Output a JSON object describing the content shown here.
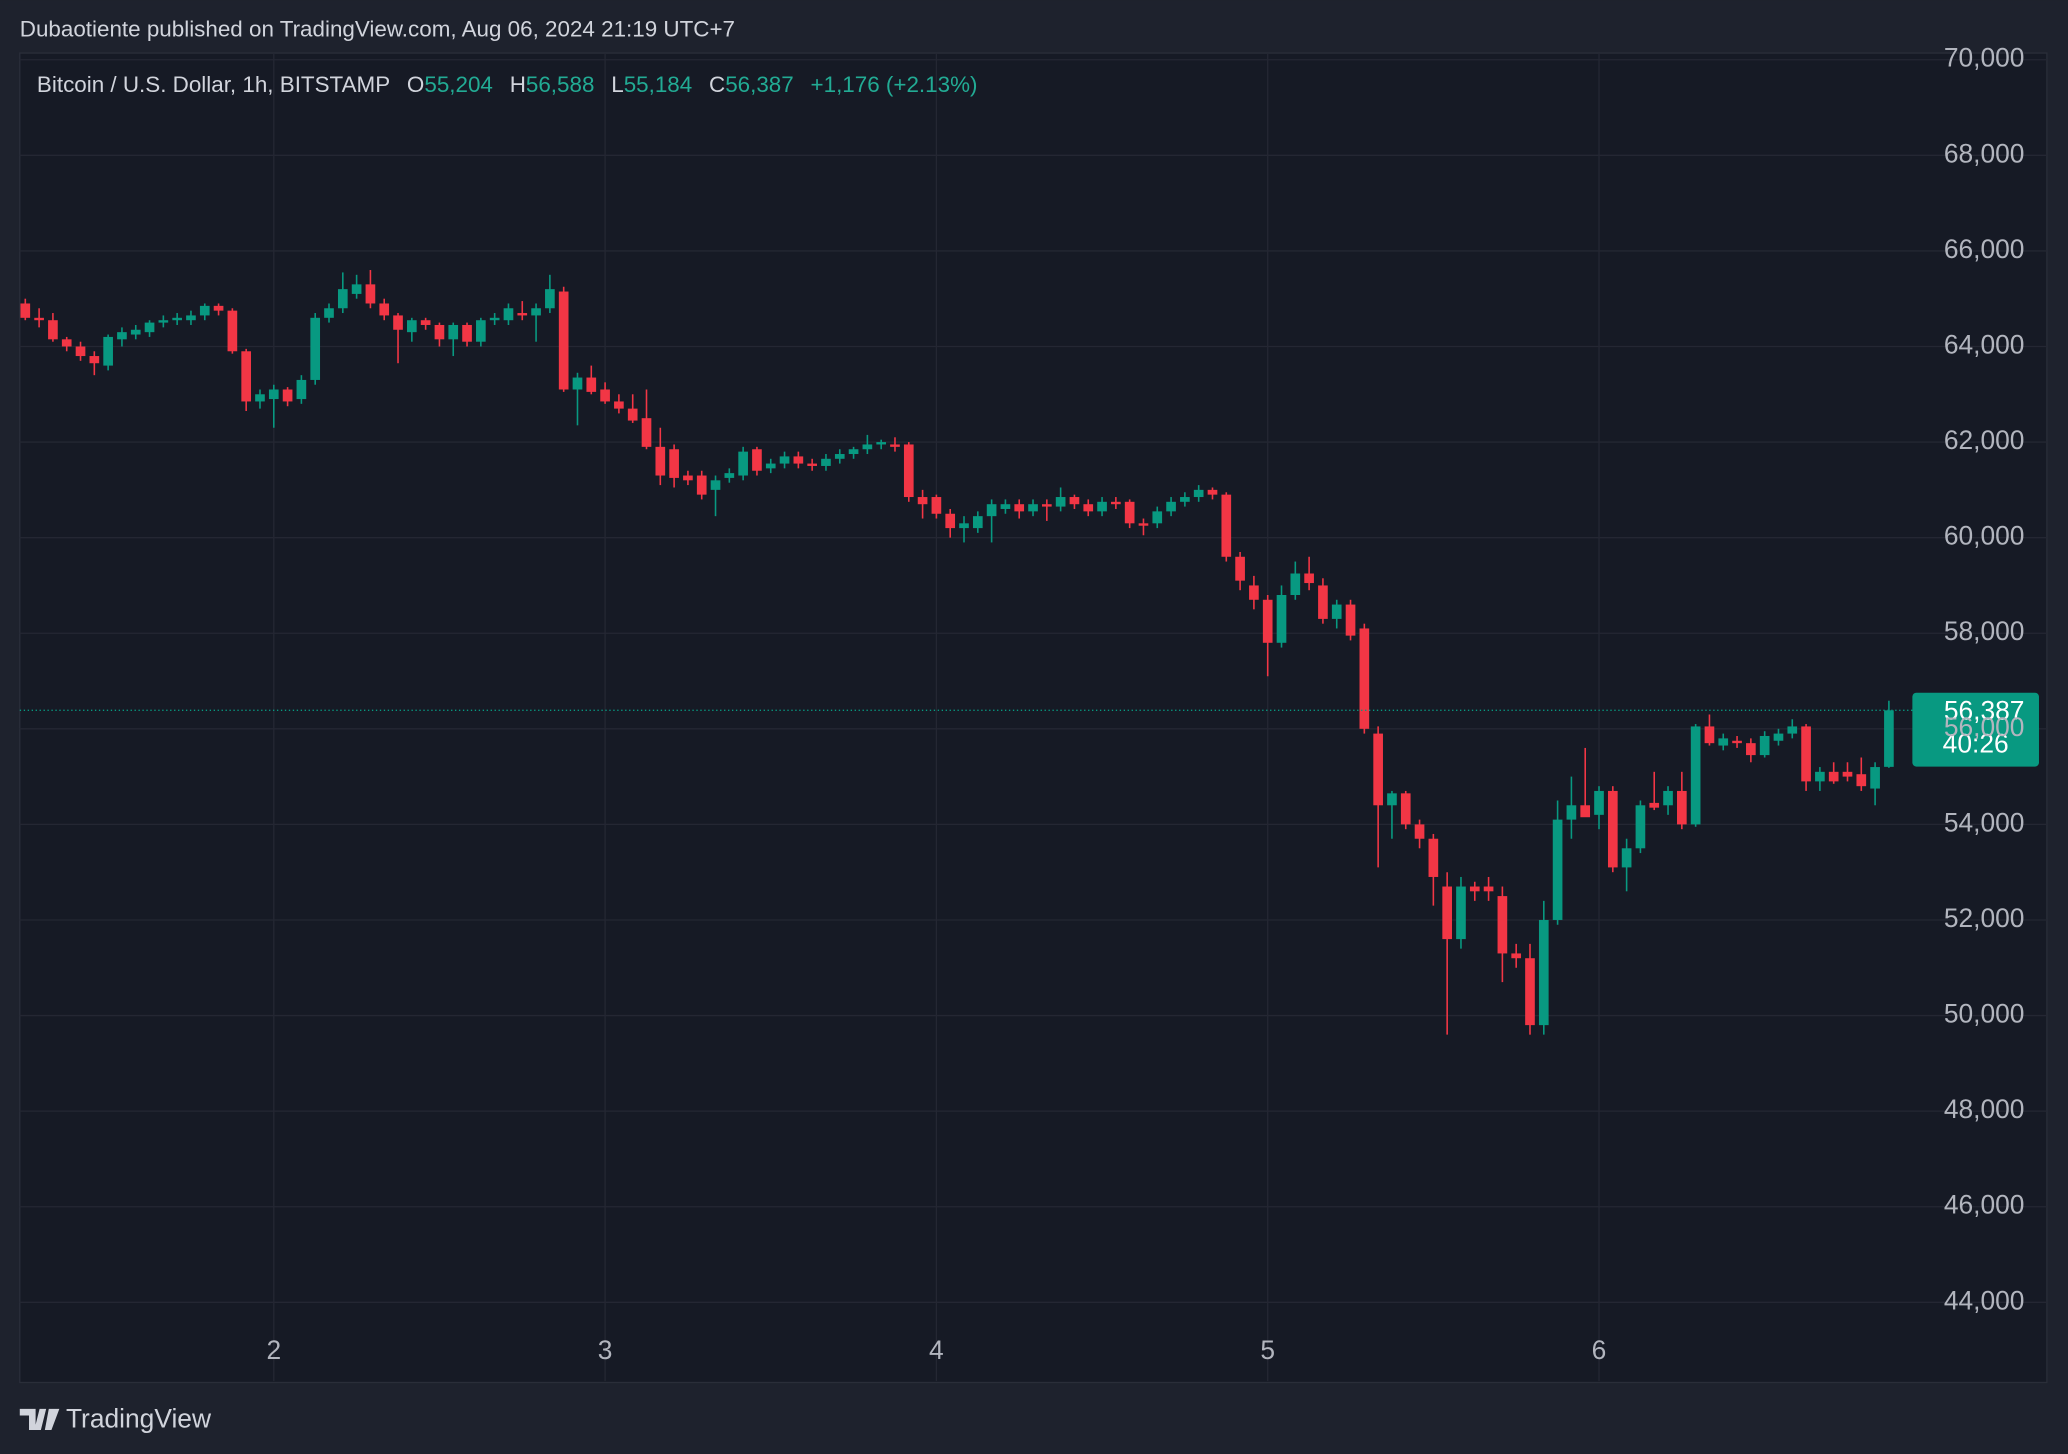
{
  "chart_data": {
    "type": "candlestick",
    "attribution": "Dubaotiente published on TradingView.com, Aug 06, 2024 21:19 UTC+7",
    "symbol": "Bitcoin / U.S. Dollar, 1h, BITSTAMP",
    "ohlc_labels": [
      {
        "key": "O",
        "value": "55,204"
      },
      {
        "key": "H",
        "value": "56,588"
      },
      {
        "key": "L",
        "value": "55,184"
      },
      {
        "key": "C",
        "value": "56,387"
      }
    ],
    "change": "+1,176 (+2.13%)",
    "price_tag": {
      "price": "56,387",
      "countdown": "40:26"
    },
    "brand": "TradingView",
    "up_color": "#089981",
    "down_color": "#f23645",
    "grid": true,
    "x": [
      6,
      7,
      8,
      9,
      10,
      11,
      12,
      13,
      14,
      15,
      16,
      17,
      18,
      19,
      20,
      21,
      22,
      23,
      24,
      25,
      26,
      27,
      28,
      29,
      30,
      31,
      32,
      33,
      34,
      35,
      36,
      37,
      38,
      39,
      40,
      41,
      42,
      43,
      44,
      45,
      46,
      47,
      48,
      49,
      50,
      51,
      52,
      53,
      54,
      55,
      56,
      57,
      58,
      59,
      60,
      61,
      62,
      63,
      64,
      65,
      66,
      67,
      68,
      69,
      70,
      71,
      72,
      73,
      74,
      75,
      76,
      77,
      78,
      79,
      80,
      81,
      82,
      83,
      84,
      85,
      86,
      87,
      88,
      89,
      90,
      91,
      92,
      93,
      94,
      95,
      96,
      97,
      98,
      99,
      100,
      101,
      102,
      103,
      104,
      105,
      106,
      107,
      108,
      109,
      110,
      111,
      112,
      113,
      114,
      115,
      116,
      117,
      118,
      119,
      120,
      121,
      122,
      123,
      124,
      125,
      126,
      127,
      128,
      129,
      130,
      131,
      132,
      133,
      134,
      135,
      136,
      137,
      138,
      139,
      140,
      141
    ],
    "open": [
      64900,
      64600,
      64550,
      64150,
      64000,
      63800,
      63600,
      64150,
      64250,
      64300,
      64500,
      64550,
      64550,
      64650,
      64850,
      64750,
      63900,
      62850,
      62900,
      63100,
      62900,
      63300,
      64600,
      64800,
      65100,
      65300,
      64900,
      64650,
      64300,
      64550,
      64450,
      64150,
      64450,
      64100,
      64550,
      64550,
      64700,
      64650,
      64800,
      65150,
      63100,
      63350,
      63100,
      62850,
      62700,
      62500,
      61900,
      61850,
      61300,
      61300,
      61000,
      61250,
      61300,
      61850,
      61450,
      61550,
      61700,
      61550,
      61500,
      61650,
      61750,
      61850,
      61950,
      61950,
      61950,
      60850,
      60850,
      60500,
      60200,
      60200,
      60450,
      60600,
      60700,
      60550,
      60700,
      60650,
      60850,
      60700,
      60550,
      60750,
      60750,
      60300,
      60300,
      60550,
      60750,
      60850,
      61000,
      60900,
      59600,
      59000,
      58700,
      57800,
      58800,
      59250,
      59000,
      58300,
      58600,
      58100,
      55900,
      54400,
      54650,
      54000,
      53700,
      52700,
      51600,
      52700,
      52700,
      52500,
      51300,
      51200,
      49800,
      52000,
      54100,
      54400,
      54200,
      54700,
      53100,
      53500,
      54450,
      54400,
      54700,
      54000,
      56050,
      55650,
      55750,
      55700,
      55450,
      55750,
      55900,
      56050,
      54900,
      55100,
      55100,
      55050,
      54750,
      55204
    ],
    "high": [
      65000,
      64800,
      64700,
      64200,
      64100,
      63900,
      64250,
      64400,
      64450,
      64550,
      64650,
      64700,
      64750,
      64900,
      64900,
      64800,
      63950,
      63100,
      63200,
      63150,
      63400,
      64700,
      64900,
      65550,
      65500,
      65600,
      65000,
      64700,
      64600,
      64600,
      64500,
      64500,
      64500,
      64600,
      64700,
      64900,
      64950,
      64900,
      65500,
      65250,
      63450,
      63600,
      63250,
      63000,
      63000,
      63100,
      62300,
      61950,
      61400,
      61400,
      61300,
      61450,
      61900,
      61900,
      61650,
      61800,
      61800,
      61650,
      61750,
      61850,
      61900,
      62150,
      62050,
      62100,
      62000,
      61000,
      60900,
      60600,
      60450,
      60550,
      60800,
      60800,
      60800,
      60800,
      60800,
      61050,
      60900,
      60800,
      60850,
      60850,
      60800,
      60400,
      60650,
      60850,
      60950,
      61100,
      61050,
      60950,
      59700,
      59200,
      58800,
      59000,
      59500,
      59600,
      59150,
      58700,
      58700,
      58200,
      56050,
      54700,
      54700,
      54100,
      53800,
      53000,
      52900,
      52800,
      52900,
      52700,
      51500,
      51500,
      52400,
      54500,
      55000,
      55600,
      54800,
      54800,
      53700,
      54500,
      55100,
      54800,
      55100,
      56100,
      56300,
      55900,
      55850,
      55800,
      55950,
      56000,
      56200,
      56100,
      55200,
      55300,
      55300,
      55400,
      55300,
      56588
    ],
    "low": [
      64550,
      64400,
      64100,
      63900,
      63700,
      63400,
      63500,
      64000,
      64150,
      64200,
      64400,
      64450,
      64450,
      64550,
      64650,
      63850,
      62650,
      62700,
      62300,
      62750,
      62800,
      63200,
      64500,
      64700,
      65000,
      64800,
      64550,
      63650,
      64100,
      64350,
      64000,
      63800,
      64000,
      64000,
      64450,
      64450,
      64550,
      64100,
      64700,
      63050,
      62350,
      63000,
      62800,
      62600,
      62400,
      61850,
      61100,
      61050,
      61100,
      60800,
      60450,
      61150,
      61200,
      61300,
      61350,
      61450,
      61450,
      61400,
      61400,
      61550,
      61650,
      61750,
      61850,
      61800,
      60750,
      60400,
      60400,
      60000,
      59900,
      60100,
      59900,
      60500,
      60400,
      60450,
      60350,
      60550,
      60600,
      60450,
      60450,
      60600,
      60200,
      60050,
      60200,
      60450,
      60650,
      60750,
      60800,
      59500,
      58900,
      58500,
      57100,
      57700,
      58700,
      58900,
      58200,
      58100,
      57850,
      55900,
      53100,
      53700,
      53900,
      53500,
      52300,
      49600,
      51400,
      52400,
      52400,
      50700,
      51000,
      49600,
      49600,
      51900,
      53700,
      54200,
      53900,
      53000,
      52600,
      53400,
      54300,
      54200,
      53900,
      53950,
      55650,
      55550,
      55600,
      55300,
      55400,
      55650,
      55800,
      54700,
      54700,
      54850,
      54900,
      54700,
      54400,
      55184
    ],
    "close": [
      64600,
      64550,
      64150,
      64000,
      63800,
      63650,
      64200,
      64300,
      64350,
      64500,
      64550,
      64600,
      64650,
      64850,
      64750,
      63900,
      62850,
      63000,
      63100,
      62850,
      63300,
      64600,
      64800,
      65200,
      65300,
      64900,
      64650,
      64350,
      64550,
      64450,
      64150,
      64450,
      64100,
      64550,
      64600,
      64800,
      64650,
      64800,
      65200,
      63100,
      63350,
      63050,
      62850,
      62700,
      62450,
      61900,
      61300,
      61250,
      61200,
      60900,
      61200,
      61350,
      61800,
      61400,
      61550,
      61700,
      61550,
      61500,
      61650,
      61750,
      61850,
      61950,
      62000,
      61900,
      60850,
      60700,
      60500,
      60200,
      60300,
      60450,
      60700,
      60700,
      60550,
      60700,
      60650,
      60850,
      60700,
      60550,
      60750,
      60700,
      60300,
      60250,
      60550,
      60750,
      60850,
      61000,
      60900,
      59600,
      59100,
      58700,
      57800,
      58800,
      59250,
      59050,
      58300,
      58600,
      57950,
      56000,
      54400,
      54650,
      54000,
      53700,
      52900,
      51600,
      52700,
      52600,
      52600,
      51300,
      51200,
      49800,
      52000,
      54100,
      54400,
      54150,
      54700,
      53100,
      53500,
      54400,
      54350,
      54700,
      54000,
      56050,
      55700,
      55800,
      55700,
      55450,
      55850,
      55900,
      56050,
      54900,
      55100,
      54900,
      55000,
      54800,
      55200,
      56387
    ],
    "xlim": [
      5.6,
      142.7
    ],
    "xticks": [
      {
        "value": 24,
        "label": "2"
      },
      {
        "value": 48,
        "label": "3"
      },
      {
        "value": 72,
        "label": "4"
      },
      {
        "value": 96,
        "label": "5"
      },
      {
        "value": 120,
        "label": "6"
      }
    ],
    "ylim": [
      42350,
      70140
    ],
    "yticks": [
      {
        "value": 44000,
        "label": "44,000"
      },
      {
        "value": 46000,
        "label": "46,000"
      },
      {
        "value": 48000,
        "label": "48,000"
      },
      {
        "value": 50000,
        "label": "50,000"
      },
      {
        "value": 52000,
        "label": "52,000"
      },
      {
        "value": 54000,
        "label": "54,000"
      },
      {
        "value": 56000,
        "label": "56,000"
      },
      {
        "value": 58000,
        "label": "58,000"
      },
      {
        "value": 60000,
        "label": "60,000"
      },
      {
        "value": 62000,
        "label": "62,000"
      },
      {
        "value": 64000,
        "label": "64,000"
      },
      {
        "value": 66000,
        "label": "66,000"
      },
      {
        "value": 68000,
        "label": "68,000"
      },
      {
        "value": 70000,
        "label": "70,000"
      }
    ]
  }
}
